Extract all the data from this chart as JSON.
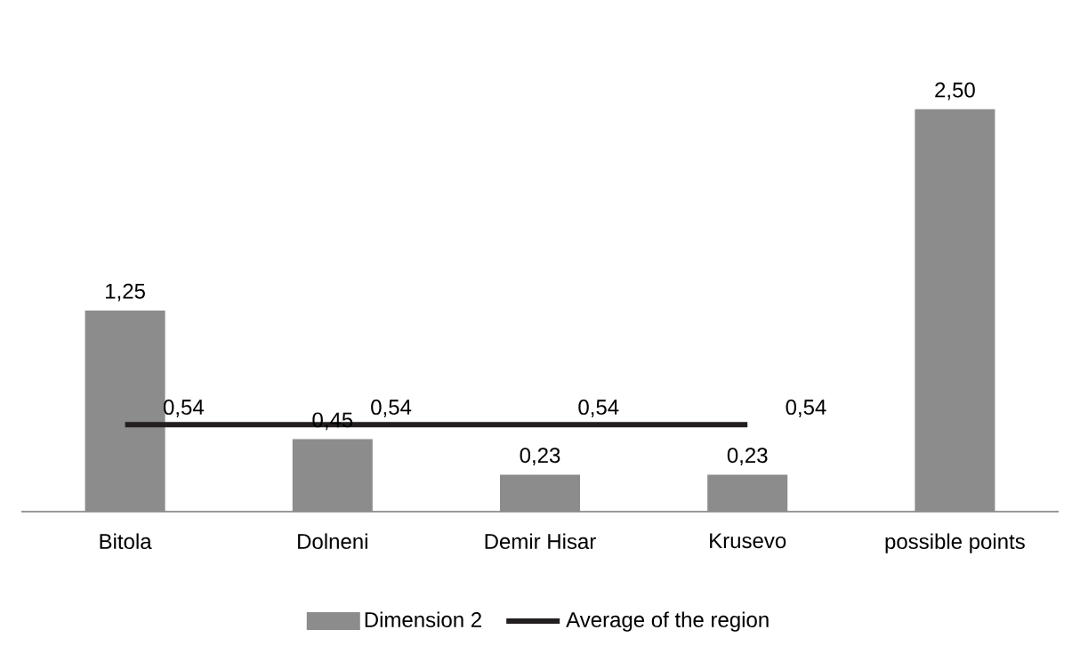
{
  "chart_data": {
    "type": "bar",
    "categories": [
      "Bitola",
      "Dolneni",
      "Demir Hisar",
      "Krusevo",
      "possible points"
    ],
    "series": [
      {
        "name": "Dimension 2",
        "color": "#8c8c8c",
        "values": [
          1.25,
          0.45,
          0.23,
          0.23,
          2.5
        ],
        "value_labels": [
          "1,25",
          "0,45",
          "0,23",
          "0,23",
          "2,50"
        ]
      },
      {
        "name": "Average of the region",
        "type": "line",
        "color": "#231f20",
        "values": [
          0.54,
          0.54,
          0.54,
          0.54,
          null
        ],
        "value_labels": [
          "0,54",
          "0,54",
          "0,54",
          "0,54",
          null
        ]
      }
    ],
    "legend": "bottom"
  }
}
